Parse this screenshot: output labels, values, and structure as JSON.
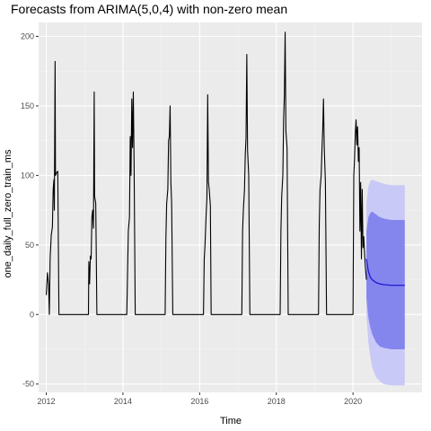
{
  "chart_data": {
    "type": "line",
    "title": "Forecasts from ARIMA(5,0,4) with non-zero mean",
    "xlabel": "Time",
    "ylabel": "one_daily_full_zero_train_ms",
    "xlim": [
      2011.8,
      2021.8
    ],
    "ylim": [
      -56,
      210
    ],
    "x_ticks": [
      2012,
      2014,
      2016,
      2018,
      2020
    ],
    "y_ticks": [
      -50,
      0,
      50,
      100,
      150,
      200
    ],
    "grid": true,
    "legend": "none",
    "colors": {
      "panel": "#ebebeb",
      "grid_major": "#ffffff",
      "grid_minor": "#f4f4f4",
      "history": "#000000",
      "pi95": "#c9c9f7",
      "pi80": "#8585ee",
      "forecast": "#1a1ad6"
    },
    "history_series": {
      "name": "",
      "points": [
        [
          2012.0,
          14
        ],
        [
          2012.03,
          30
        ],
        [
          2012.06,
          22
        ],
        [
          2012.08,
          0
        ],
        [
          2012.1,
          40
        ],
        [
          2012.13,
          57
        ],
        [
          2012.16,
          63
        ],
        [
          2012.18,
          90
        ],
        [
          2012.2,
          97
        ],
        [
          2012.21,
          75
        ],
        [
          2012.23,
          182
        ],
        [
          2012.24,
          100
        ],
        [
          2012.27,
          102
        ],
        [
          2012.3,
          103
        ],
        [
          2012.33,
          0
        ],
        [
          2013.1,
          0
        ],
        [
          2013.11,
          38
        ],
        [
          2013.13,
          22
        ],
        [
          2013.15,
          42
        ],
        [
          2013.17,
          40
        ],
        [
          2013.19,
          70
        ],
        [
          2013.21,
          75
        ],
        [
          2013.23,
          62
        ],
        [
          2013.25,
          160
        ],
        [
          2013.26,
          85
        ],
        [
          2013.29,
          80
        ],
        [
          2013.32,
          0
        ],
        [
          2014.1,
          0
        ],
        [
          2014.12,
          30
        ],
        [
          2014.14,
          60
        ],
        [
          2014.17,
          70
        ],
        [
          2014.19,
          128
        ],
        [
          2014.21,
          100
        ],
        [
          2014.23,
          155
        ],
        [
          2014.25,
          120
        ],
        [
          2014.27,
          160
        ],
        [
          2014.29,
          110
        ],
        [
          2014.32,
          0
        ],
        [
          2015.1,
          0
        ],
        [
          2015.12,
          55
        ],
        [
          2015.14,
          80
        ],
        [
          2015.17,
          90
        ],
        [
          2015.19,
          125
        ],
        [
          2015.21,
          128
        ],
        [
          2015.23,
          150
        ],
        [
          2015.25,
          95
        ],
        [
          2015.27,
          80
        ],
        [
          2015.3,
          0
        ],
        [
          2016.1,
          0
        ],
        [
          2016.12,
          40
        ],
        [
          2016.14,
          50
        ],
        [
          2016.17,
          72
        ],
        [
          2016.19,
          84
        ],
        [
          2016.21,
          158
        ],
        [
          2016.23,
          95
        ],
        [
          2016.25,
          90
        ],
        [
          2016.28,
          78
        ],
        [
          2016.3,
          0
        ],
        [
          2017.1,
          0
        ],
        [
          2017.12,
          60
        ],
        [
          2017.14,
          75
        ],
        [
          2017.17,
          90
        ],
        [
          2017.19,
          115
        ],
        [
          2017.21,
          127
        ],
        [
          2017.23,
          187
        ],
        [
          2017.25,
          118
        ],
        [
          2017.28,
          100
        ],
        [
          2017.31,
          0
        ],
        [
          2018.1,
          0
        ],
        [
          2018.12,
          60
        ],
        [
          2018.14,
          85
        ],
        [
          2018.17,
          100
        ],
        [
          2018.19,
          140
        ],
        [
          2018.21,
          158
        ],
        [
          2018.23,
          203
        ],
        [
          2018.25,
          132
        ],
        [
          2018.28,
          120
        ],
        [
          2018.31,
          0
        ],
        [
          2019.1,
          0
        ],
        [
          2019.12,
          65
        ],
        [
          2019.14,
          90
        ],
        [
          2019.17,
          100
        ],
        [
          2019.19,
          118
        ],
        [
          2019.21,
          133
        ],
        [
          2019.23,
          155
        ],
        [
          2019.25,
          120
        ],
        [
          2019.28,
          95
        ],
        [
          2019.31,
          0
        ],
        [
          2020.0,
          0
        ],
        [
          2020.02,
          100
        ],
        [
          2020.04,
          112
        ],
        [
          2020.06,
          130
        ],
        [
          2020.08,
          140
        ],
        [
          2020.1,
          122
        ],
        [
          2020.12,
          135
        ],
        [
          2020.14,
          110
        ],
        [
          2020.16,
          120
        ],
        [
          2020.18,
          60
        ],
        [
          2020.2,
          95
        ],
        [
          2020.22,
          40
        ],
        [
          2020.24,
          90
        ],
        [
          2020.26,
          48
        ],
        [
          2020.28,
          56
        ],
        [
          2020.3,
          45
        ],
        [
          2020.32,
          35
        ],
        [
          2020.35,
          25
        ]
      ]
    },
    "forecast": {
      "x": [
        2020.35,
        2020.4,
        2020.45,
        2020.5,
        2020.6,
        2020.7,
        2020.8,
        2021.0,
        2021.2,
        2021.35
      ],
      "mean": [
        40,
        31,
        27,
        25,
        23,
        22,
        21.5,
        21,
        21,
        21
      ],
      "lo80": [
        12,
        -2,
        -9,
        -14,
        -20,
        -23,
        -24,
        -25,
        -25,
        -25
      ],
      "hi80": [
        60,
        70,
        73,
        74,
        72,
        70,
        69,
        68,
        68,
        68
      ],
      "lo95": [
        0,
        -20,
        -30,
        -38,
        -45,
        -48,
        -50,
        -51,
        -51,
        -51
      ],
      "hi95": [
        80,
        92,
        96,
        97,
        96,
        95,
        94,
        93,
        93,
        93
      ]
    }
  }
}
